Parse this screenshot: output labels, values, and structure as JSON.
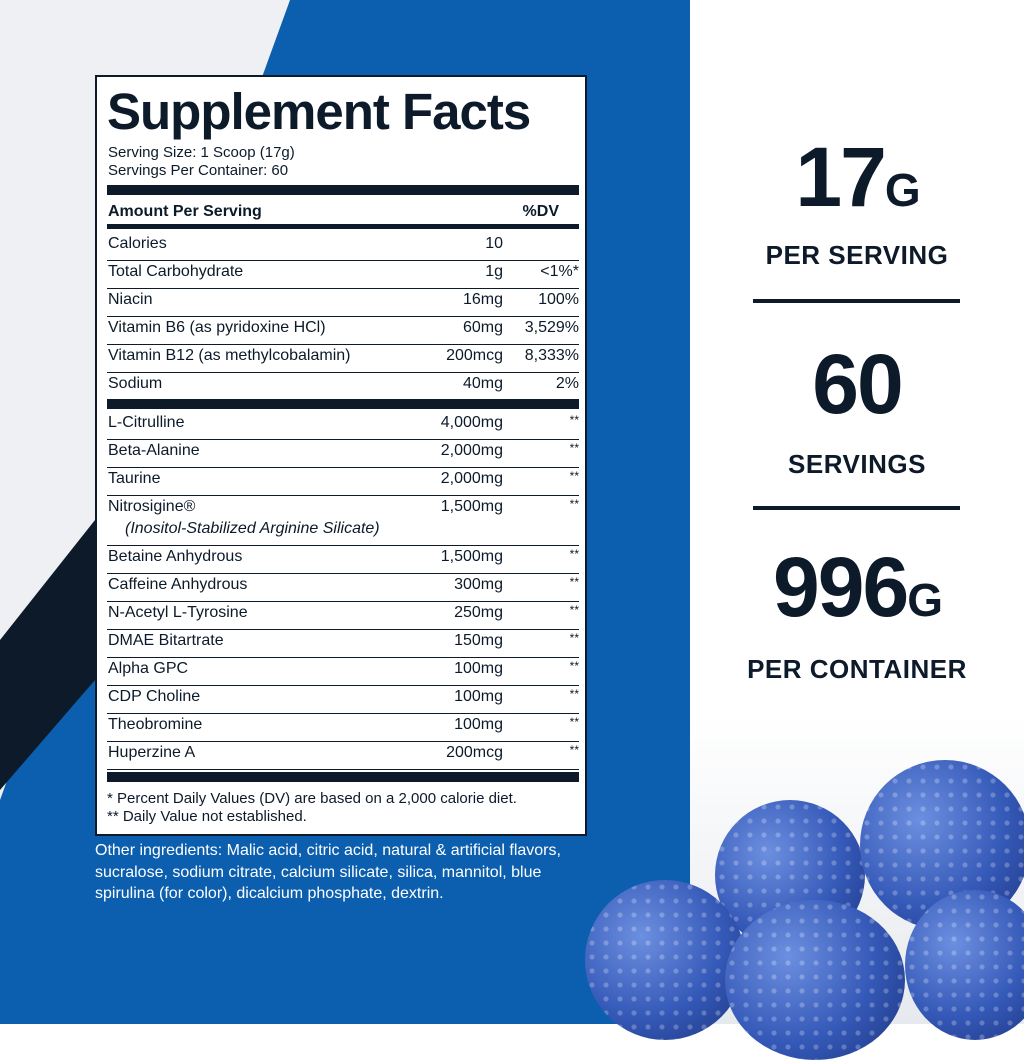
{
  "label": {
    "title": "Supplement Facts",
    "serving_size": "Serving Size: 1 Scoop (17g)",
    "servings_per_container": "Servings Per Container: 60",
    "header_amount": "Amount Per Serving",
    "header_dv": "%DV",
    "nutrients": [
      {
        "name": "Calories",
        "amount": "10",
        "dv": ""
      },
      {
        "name": "Total Carbohydrate",
        "amount": "1g",
        "dv": "<1%*"
      },
      {
        "name": "Niacin",
        "amount": "16mg",
        "dv": "100%"
      },
      {
        "name": "Vitamin B6 (as pyridoxine HCl)",
        "amount": "60mg",
        "dv": "3,529%"
      },
      {
        "name": "Vitamin B12 (as methylcobalamin)",
        "amount": "200mcg",
        "dv": "8,333%"
      },
      {
        "name": "Sodium",
        "amount": "40mg",
        "dv": "2%"
      }
    ],
    "ingredients": [
      {
        "name": "L-Citrulline",
        "amount": "4,000mg",
        "dv": "**"
      },
      {
        "name": "Beta-Alanine",
        "amount": "2,000mg",
        "dv": "**"
      },
      {
        "name": "Taurine",
        "amount": "2,000mg",
        "dv": "**"
      },
      {
        "name": "Nitrosigine®",
        "sub": "(Inositol-Stabilized Arginine Silicate)",
        "amount": "1,500mg",
        "dv": "**"
      },
      {
        "name": "Betaine Anhydrous",
        "amount": "1,500mg",
        "dv": "**"
      },
      {
        "name": "Caffeine Anhydrous",
        "amount": "300mg",
        "dv": "**"
      },
      {
        "name": "N-Acetyl L-Tyrosine",
        "amount": "250mg",
        "dv": "**"
      },
      {
        "name": "DMAE Bitartrate",
        "amount": "150mg",
        "dv": "**"
      },
      {
        "name": "Alpha GPC",
        "amount": "100mg",
        "dv": "**"
      },
      {
        "name": "CDP Choline",
        "amount": "100mg",
        "dv": "**"
      },
      {
        "name": "Theobromine",
        "amount": "100mg",
        "dv": "**"
      },
      {
        "name": "Huperzine A",
        "amount": "200mcg",
        "dv": "**"
      }
    ],
    "footnote_1": "* Percent Daily Values (DV) are based on a 2,000 calorie diet.",
    "footnote_2": "** Daily Value not established."
  },
  "other_ingredients": "Other ingredients: Malic acid, citric acid, natural & artificial flavors, sucralose, sodium citrate, calcium silicate, silica, mannitol, blue spirulina (for color), dicalcium phosphate, dextrin.",
  "stats": [
    {
      "value": "17",
      "unit": "G",
      "caption": "PER SERVING"
    },
    {
      "value": "60",
      "unit": "",
      "caption": "SERVINGS"
    },
    {
      "value": "996",
      "unit": "G",
      "caption": "PER CONTAINER"
    }
  ],
  "colors": {
    "brand_blue": "#0b5fae",
    "navy": "#0c1a2a",
    "berry": "#3559b8"
  }
}
